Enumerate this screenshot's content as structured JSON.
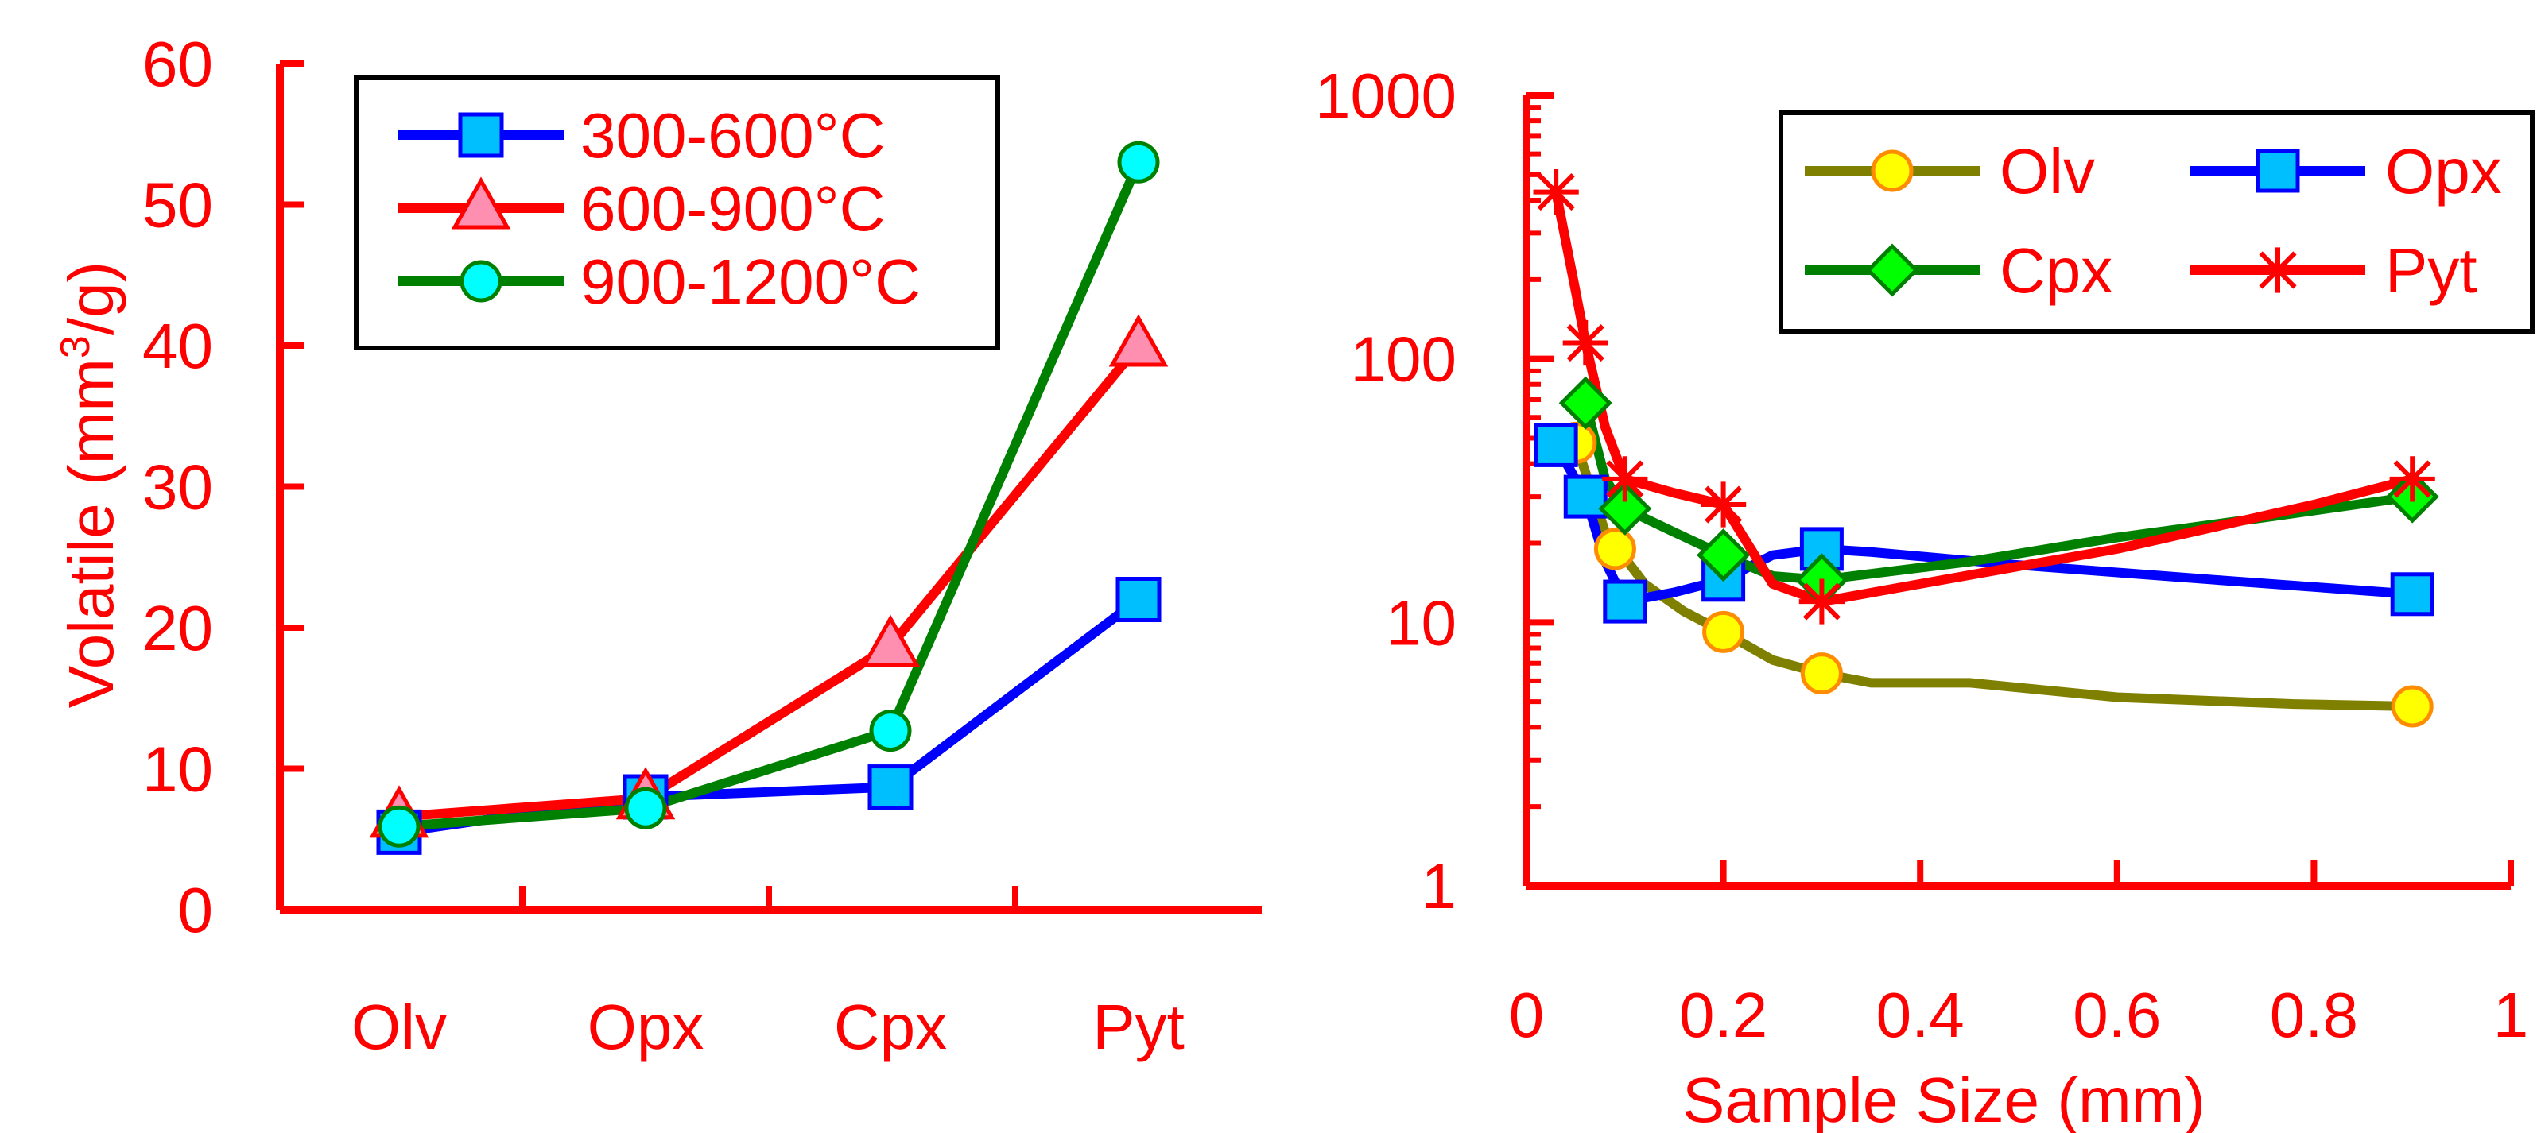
{
  "chart_data": [
    {
      "type": "line",
      "title": "",
      "xlabel": "",
      "ylabel": "Volatile (mm",
      "ylabel_sup": "3",
      "ylabel_tail": "/g)",
      "categories": [
        "Olv",
        "Opx",
        "Cpx",
        "Pyt"
      ],
      "ylim": [
        0,
        60
      ],
      "yticks": [
        "0",
        "10",
        "20",
        "30",
        "40",
        "50",
        "60"
      ],
      "legend_position": "top-left",
      "series": [
        {
          "name": "300-600°C",
          "values": [
            5.5,
            8.0,
            8.7,
            22.0
          ],
          "color": "#0000ff",
          "marker": "square",
          "marker_fill": "#00bfff"
        },
        {
          "name": "600-900°C",
          "values": [
            6.6,
            7.9,
            18.7,
            40.0
          ],
          "color": "#ff0000",
          "marker": "triangle",
          "marker_fill": "#ff8fb0"
        },
        {
          "name": "900-1200°C",
          "values": [
            5.9,
            7.2,
            12.7,
            53.0
          ],
          "color": "#008000",
          "marker": "circle",
          "marker_fill": "#00ffff"
        }
      ]
    },
    {
      "type": "line",
      "title": "",
      "xlabel": "Sample Size (mm)",
      "ylabel": "",
      "y_scale": "log",
      "xlim": [
        0,
        1
      ],
      "ylim": [
        1,
        1000
      ],
      "xticks": [
        "0",
        "0.2",
        "0.4",
        "0.6",
        "0.8",
        "1"
      ],
      "yticks": [
        "1",
        "10",
        "100",
        "1000"
      ],
      "legend_position": "top-right",
      "series": [
        {
          "name": "Olv",
          "color": "#808000",
          "marker": "circle",
          "marker_fill": "#ffff00",
          "marker_edge": "#ff8c00",
          "x": [
            0.05,
            0.09,
            0.2,
            0.3,
            0.9
          ],
          "y": [
            48,
            19,
            9.2,
            6.4,
            4.8
          ],
          "curve": [
            [
              0.05,
              48
            ],
            [
              0.08,
              22
            ],
            [
              0.12,
              14
            ],
            [
              0.16,
              11
            ],
            [
              0.2,
              9.2
            ],
            [
              0.25,
              7.2
            ],
            [
              0.3,
              6.4
            ],
            [
              0.35,
              5.9
            ],
            [
              0.45,
              5.9
            ],
            [
              0.6,
              5.2
            ],
            [
              0.78,
              4.9
            ],
            [
              0.9,
              4.8
            ]
          ]
        },
        {
          "name": "Opx",
          "color": "#0000ff",
          "marker": "square",
          "marker_fill": "#00bfff",
          "marker_edge": "#0000ff",
          "x": [
            0.03,
            0.06,
            0.1,
            0.2,
            0.3,
            0.9
          ],
          "y": [
            47,
            30,
            12,
            14.5,
            19,
            12.8
          ],
          "curve": [
            [
              0.03,
              47
            ],
            [
              0.06,
              30
            ],
            [
              0.08,
              17
            ],
            [
              0.1,
              12
            ],
            [
              0.15,
              13
            ],
            [
              0.2,
              14.5
            ],
            [
              0.25,
              18
            ],
            [
              0.3,
              19
            ],
            [
              0.35,
              18.5
            ],
            [
              0.5,
              16.5
            ],
            [
              0.7,
              14.5
            ],
            [
              0.9,
              12.8
            ]
          ]
        },
        {
          "name": "Cpx",
          "color": "#008000",
          "marker": "diamond",
          "marker_fill": "#00ff00",
          "marker_edge": "#008000",
          "x": [
            0.06,
            0.1,
            0.2,
            0.3,
            0.9
          ],
          "y": [
            68,
            27,
            18,
            14.5,
            30
          ],
          "curve": [
            [
              0.06,
              68
            ],
            [
              0.08,
              35
            ],
            [
              0.1,
              27
            ],
            [
              0.15,
              22
            ],
            [
              0.2,
              18
            ],
            [
              0.25,
              15
            ],
            [
              0.3,
              14.5
            ],
            [
              0.45,
              17
            ],
            [
              0.6,
              21
            ],
            [
              0.75,
              25
            ],
            [
              0.9,
              30
            ]
          ]
        },
        {
          "name": "Pyt",
          "color": "#ff0000",
          "marker": "star",
          "marker_fill": "#ff0000",
          "marker_edge": "#ff0000",
          "x": [
            0.03,
            0.06,
            0.1,
            0.2,
            0.3,
            0.9
          ],
          "y": [
            430,
            115,
            35,
            28,
            12,
            35
          ],
          "curve": [
            [
              0.03,
              430
            ],
            [
              0.05,
              180
            ],
            [
              0.06,
              115
            ],
            [
              0.08,
              55
            ],
            [
              0.1,
              35
            ],
            [
              0.15,
              31
            ],
            [
              0.2,
              28
            ],
            [
              0.25,
              14
            ],
            [
              0.3,
              12
            ],
            [
              0.4,
              14
            ],
            [
              0.6,
              19
            ],
            [
              0.8,
              28
            ],
            [
              0.9,
              35
            ]
          ]
        }
      ]
    }
  ]
}
